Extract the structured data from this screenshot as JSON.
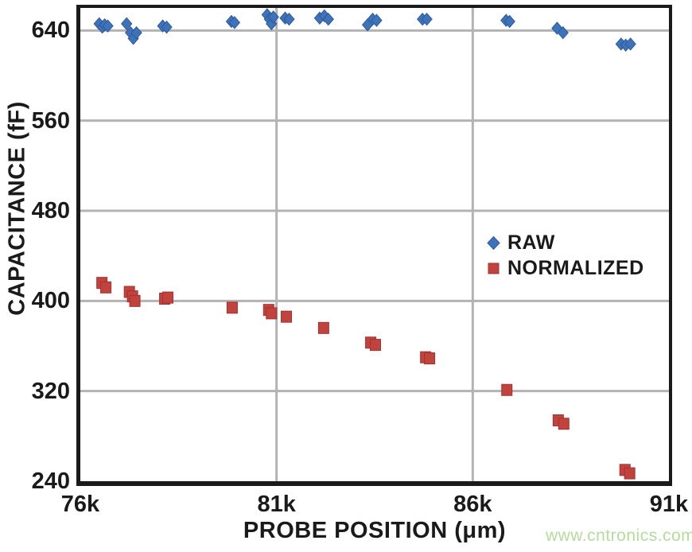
{
  "watermark": {
    "text": "www.cntronics.com",
    "color": "#b5dc9b"
  },
  "chart_data": {
    "type": "scatter",
    "title": "",
    "xlabel": "PROBE POSITION (μm)",
    "ylabel": "CAPACITANCE (fF)",
    "xlim": [
      76000,
      91000
    ],
    "ylim": [
      240,
      660
    ],
    "x_ticks": [
      {
        "value": 76000,
        "label": "76k"
      },
      {
        "value": 81000,
        "label": "81k"
      },
      {
        "value": 86000,
        "label": "86k"
      },
      {
        "value": 91000,
        "label": "91k"
      }
    ],
    "y_ticks": [
      {
        "value": 240,
        "label": "240"
      },
      {
        "value": 320,
        "label": "320"
      },
      {
        "value": 400,
        "label": "400"
      },
      {
        "value": 480,
        "label": "480"
      },
      {
        "value": 560,
        "label": "560"
      },
      {
        "value": 640,
        "label": "640"
      }
    ],
    "x_gridlines": [
      81000,
      86000
    ],
    "y_gridlines": [
      320,
      400,
      480,
      560,
      640
    ],
    "grid_on": true,
    "grid_color": "#b3b3b3",
    "axis_color": "#1a1a1a",
    "legend_position": "middle-right",
    "series": [
      {
        "name": "RAW",
        "marker": "diamond",
        "color": "#3e73bb",
        "edge_color": "#2e5a97",
        "points": [
          [
            76480,
            646
          ],
          [
            76560,
            643
          ],
          [
            76620,
            645
          ],
          [
            76700,
            644
          ],
          [
            77180,
            646
          ],
          [
            77280,
            638
          ],
          [
            77350,
            633
          ],
          [
            77430,
            638
          ],
          [
            78100,
            644
          ],
          [
            78200,
            643
          ],
          [
            79850,
            648
          ],
          [
            79930,
            647
          ],
          [
            80760,
            654
          ],
          [
            80820,
            650
          ],
          [
            80870,
            646
          ],
          [
            80920,
            652
          ],
          [
            81220,
            651
          ],
          [
            81320,
            650
          ],
          [
            82100,
            651
          ],
          [
            82220,
            653
          ],
          [
            82320,
            650
          ],
          [
            83320,
            645
          ],
          [
            83450,
            650
          ],
          [
            83550,
            649
          ],
          [
            84720,
            650
          ],
          [
            84830,
            650
          ],
          [
            86850,
            649
          ],
          [
            86940,
            648
          ],
          [
            88150,
            642
          ],
          [
            88300,
            638
          ],
          [
            89780,
            628
          ],
          [
            89900,
            627
          ],
          [
            90020,
            628
          ]
        ]
      },
      {
        "name": "NORMALIZED",
        "marker": "square",
        "color": "#c2423d",
        "edge_color": "#a03430",
        "points": [
          [
            76550,
            416
          ],
          [
            76650,
            412
          ],
          [
            77250,
            408
          ],
          [
            77330,
            404
          ],
          [
            77390,
            400
          ],
          [
            78150,
            402
          ],
          [
            78230,
            403
          ],
          [
            79870,
            394
          ],
          [
            80800,
            392
          ],
          [
            80870,
            389
          ],
          [
            81250,
            386
          ],
          [
            82200,
            376
          ],
          [
            83400,
            363
          ],
          [
            83520,
            361
          ],
          [
            84800,
            350
          ],
          [
            84900,
            349
          ],
          [
            86870,
            321
          ],
          [
            88180,
            294
          ],
          [
            88320,
            291
          ],
          [
            89880,
            250
          ],
          [
            90000,
            247
          ]
        ]
      }
    ]
  }
}
